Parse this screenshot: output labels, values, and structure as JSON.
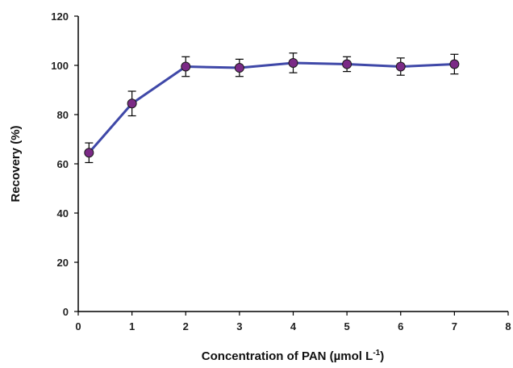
{
  "chart_data": {
    "type": "line",
    "xlabel": "Concentration of PAN (µmol L",
    "xlabel_sup": "-1",
    "xlabel_suffix": ")",
    "ylabel": "Recovery (%)",
    "xlim": [
      0,
      8
    ],
    "ylim": [
      0,
      120
    ],
    "xticks": [
      "0",
      "1",
      "2",
      "3",
      "4",
      "5",
      "6",
      "7",
      "8"
    ],
    "yticks": [
      "0",
      "20",
      "40",
      "60",
      "80",
      "100",
      "120"
    ],
    "grid": false,
    "legend": "none",
    "series": [
      {
        "x": [
          0.2,
          1,
          2,
          3,
          4,
          5,
          6,
          7
        ],
        "y": [
          64.5,
          84.5,
          99.5,
          99,
          101,
          100.5,
          99.5,
          100.5
        ],
        "error": [
          4,
          5,
          4,
          3.5,
          4,
          3,
          3.5,
          4
        ],
        "line_color": "#3f48a8",
        "marker_color": "#7b2a86"
      }
    ]
  }
}
